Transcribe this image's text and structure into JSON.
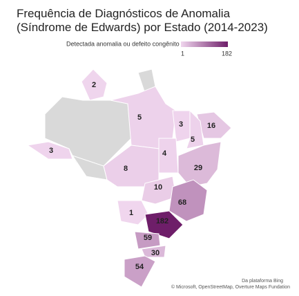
{
  "chart_data": {
    "type": "choropleth",
    "title": "Frequência de Diagnósticos de Anomalia (Síndrome de Edwards) por Estado (2014-2023)",
    "legend_title": "Detectada anomalia ou defeito congênito",
    "color_range": [
      1,
      182
    ],
    "colors": [
      "#f0d6ee",
      "#6e1e69"
    ],
    "values": [
      2,
      5,
      3,
      16,
      3,
      5,
      4,
      29,
      8,
      10,
      68,
      1,
      182,
      59,
      30,
      54
    ],
    "attribution": [
      "Da plataforma Bing",
      "© Microsoft, OpenStreetMap, Overture Maps Fundation"
    ]
  }
}
